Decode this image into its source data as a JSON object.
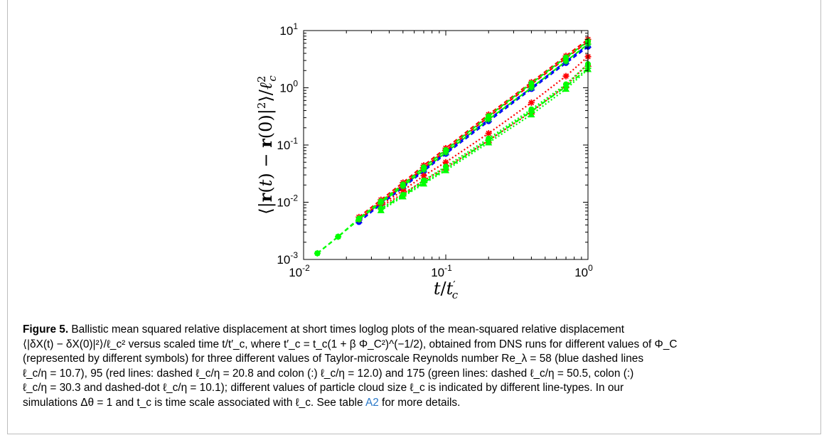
{
  "figure": {
    "caption_label": "Figure 5.",
    "caption_lines": [
      "Ballistic mean squared relative displacement at short times loglog plots of the mean-squared relative displacement",
      "⟨|δX(t) − δX(0)|²⟩/ℓ_c² versus scaled time t/t′_c, where t′_c = t_c(1 + β Φ_C²)^(−1/2), obtained from DNS runs for different values of Φ_C",
      "(represented by different symbols) for three different values of Taylor-microscale Reynolds number Re_λ = 58 (blue dashed lines",
      "ℓ_c/η = 10.7), 95 (red lines: dashed ℓ_c/η = 20.8 and colon (:) ℓ_c/η = 12.0) and 175 (green lines: dashed ℓ_c/η = 50.5, colon (:)",
      "ℓ_c/η = 30.3 and dashed-dot ℓ_c/η = 10.1); different values of particle cloud size ℓ_c is indicated by different line-types. In our",
      "simulations Δθ = 1 and t_c is time scale associated with ℓ_c. See table ",
      " for more details."
    ],
    "table_link": "A2"
  },
  "chart_data": {
    "type": "line",
    "xscale": "log",
    "yscale": "log",
    "xlim": [
      0.01,
      1
    ],
    "ylim": [
      0.001,
      10
    ],
    "xlabel": "t/t′_c",
    "ylabel": "⟨|r(t) − r(0)|²⟩/ℓ_c²",
    "x_ticks": [
      {
        "base": "10",
        "exp": "-2"
      },
      {
        "base": "10",
        "exp": "-1"
      },
      {
        "base": "10",
        "exp": "0"
      }
    ],
    "y_ticks": [
      {
        "base": "10",
        "exp": "-3"
      },
      {
        "base": "10",
        "exp": "-2"
      },
      {
        "base": "10",
        "exp": "-1"
      },
      {
        "base": "10",
        "exp": "0"
      },
      {
        "base": "10",
        "exp": "1"
      }
    ],
    "grid": false,
    "colors": {
      "blue": "#0000ff",
      "red": "#ff0000",
      "green": "#00ff00"
    },
    "series": [
      {
        "color": "blue",
        "dash": "dashed",
        "x": [
          0.0245,
          0.035,
          0.05,
          0.07,
          0.1,
          0.2,
          0.4,
          0.7,
          1.0
        ],
        "y": [
          0.0045,
          0.0092,
          0.018,
          0.035,
          0.07,
          0.26,
          0.95,
          2.7,
          5.2
        ]
      },
      {
        "color": "blue",
        "dash": "dashed",
        "x": [
          0.0245,
          0.035,
          0.05,
          0.07,
          0.1,
          0.2,
          0.4,
          0.7,
          1.0
        ],
        "y": [
          0.0048,
          0.0098,
          0.019,
          0.037,
          0.074,
          0.28,
          1.0,
          2.9,
          5.6
        ]
      },
      {
        "color": "red",
        "dash": "dashed",
        "x": [
          0.0245,
          0.035,
          0.05,
          0.07,
          0.1,
          0.2,
          0.4,
          0.7,
          1.0
        ],
        "y": [
          0.0055,
          0.011,
          0.022,
          0.044,
          0.088,
          0.34,
          1.25,
          3.6,
          7.0
        ]
      },
      {
        "color": "red",
        "dash": "dashed",
        "x": [
          0.0245,
          0.035,
          0.05,
          0.07,
          0.1,
          0.2,
          0.4,
          0.7,
          1.0
        ],
        "y": [
          0.005,
          0.01,
          0.02,
          0.04,
          0.08,
          0.31,
          1.15,
          3.3,
          6.4
        ]
      },
      {
        "color": "red",
        "dash": "colon",
        "x": [
          0.035,
          0.05,
          0.07,
          0.1,
          0.2,
          0.4,
          0.7,
          1.0
        ],
        "y": [
          0.0085,
          0.014,
          0.024,
          0.04,
          0.12,
          0.38,
          1.1,
          2.6
        ]
      },
      {
        "color": "red",
        "dash": "colon",
        "x": [
          0.035,
          0.05,
          0.07,
          0.1,
          0.2,
          0.4,
          0.7,
          1.0
        ],
        "y": [
          0.009,
          0.016,
          0.029,
          0.05,
          0.16,
          0.55,
          1.6,
          3.5
        ]
      },
      {
        "color": "green",
        "dash": "dashed",
        "x": [
          0.0125,
          0.0175,
          0.0245,
          0.035,
          0.05,
          0.07,
          0.1,
          0.2,
          0.4,
          0.7,
          1.0
        ],
        "y": [
          0.00128,
          0.0025,
          0.0052,
          0.0104,
          0.0205,
          0.041,
          0.082,
          0.32,
          1.2,
          3.4,
          6.5
        ]
      },
      {
        "color": "green",
        "dash": "dashed",
        "x": [
          0.0125,
          0.0175,
          0.0245,
          0.035,
          0.05,
          0.07,
          0.1,
          0.2,
          0.4,
          0.7,
          1.0
        ],
        "y": [
          0.00128,
          0.0025,
          0.005,
          0.0098,
          0.019,
          0.037,
          0.074,
          0.28,
          1.0,
          2.9,
          5.8
        ]
      },
      {
        "color": "green",
        "dash": "colon",
        "x": [
          0.035,
          0.05,
          0.07,
          0.1,
          0.2,
          0.4,
          0.7,
          1.0
        ],
        "y": [
          0.0072,
          0.0125,
          0.021,
          0.036,
          0.11,
          0.34,
          0.95,
          2.1
        ]
      },
      {
        "color": "green",
        "dash": "colon",
        "x": [
          0.035,
          0.05,
          0.07,
          0.1,
          0.2,
          0.4,
          0.7,
          1.0
        ],
        "y": [
          0.0078,
          0.0135,
          0.024,
          0.042,
          0.13,
          0.42,
          1.15,
          2.6
        ]
      },
      {
        "color": "green",
        "dash": "dashdot",
        "x": [
          0.035,
          0.05,
          0.07,
          0.1,
          0.2,
          0.4,
          0.7,
          1.0
        ],
        "y": [
          0.0076,
          0.013,
          0.022,
          0.038,
          0.12,
          0.39,
          1.05,
          2.2
        ]
      }
    ]
  }
}
